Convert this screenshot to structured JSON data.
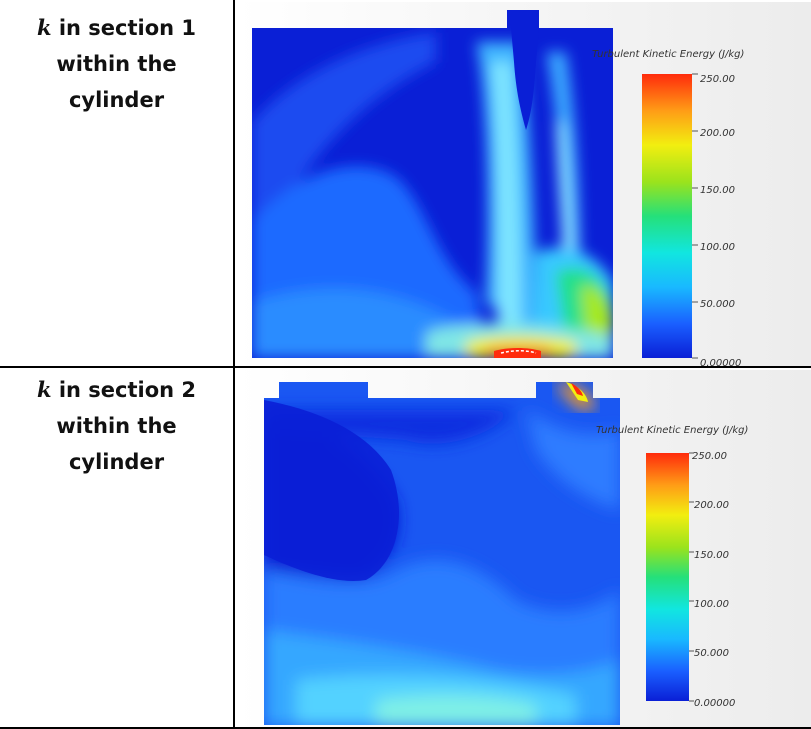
{
  "rows": [
    {
      "label_symbol": "k",
      "label_line1": " in section 1",
      "label_line2": "within  the",
      "label_line3": "cylinder",
      "colorbar": {
        "title": "Turbulent Kinetic Energy (J/kg)",
        "ticks": [
          "250.00",
          "200.00",
          "150.00",
          "100.00",
          "50.000",
          "0.00000"
        ]
      }
    },
    {
      "label_symbol": "k",
      "label_line1": " in section 2",
      "label_line2": "within  the",
      "label_line3": "cylinder",
      "colorbar": {
        "title": "Turbulent Kinetic Energy (J/kg)",
        "ticks": [
          "250.00",
          "200.00",
          "150.00",
          "100.00",
          "50.000",
          "0.00000"
        ]
      }
    }
  ],
  "colormap": {
    "colors": [
      "#0a1fd6",
      "#1a5fff",
      "#19b9ff",
      "#11e6e0",
      "#25e07a",
      "#9be31c",
      "#f2ee10",
      "#ff9d16",
      "#ff2b0c"
    ]
  }
}
